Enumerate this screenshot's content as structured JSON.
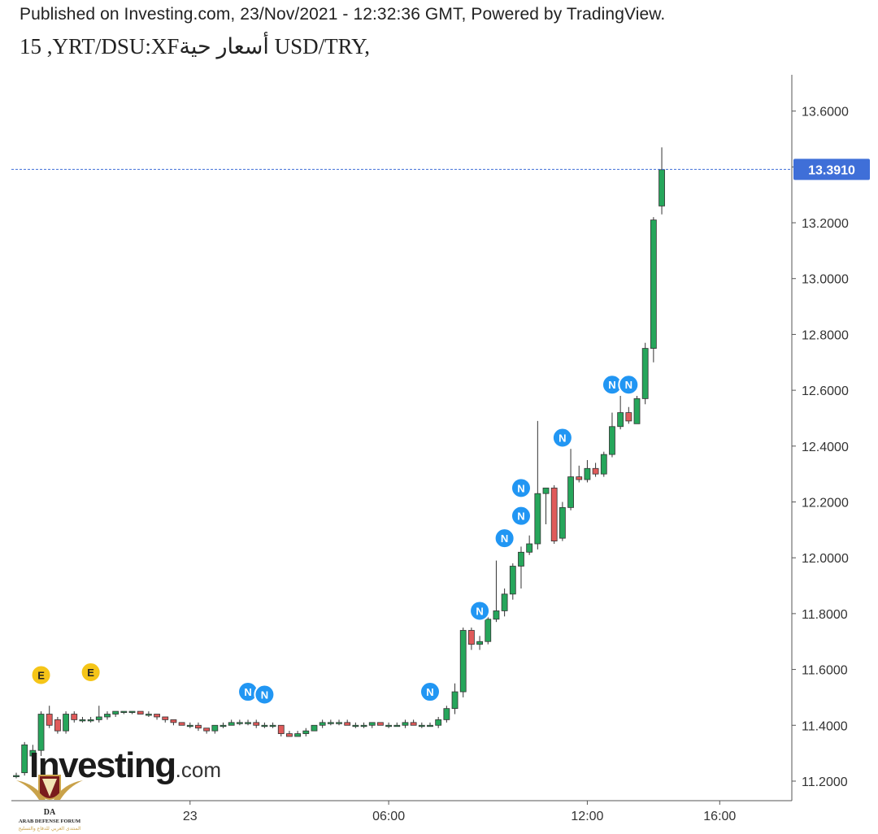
{
  "header": {
    "published_line": "Published on Investing.com, 23/Nov/2021 - 12:32:36 GMT, Powered by TradingView.",
    "title_line": "15 ,YRT/DSU:XFأسعار حية USD/TRY,"
  },
  "watermark": {
    "brand": "Investing",
    "suffix": ".com"
  },
  "badge": {
    "name": "ARAB DEFENSE FORUM",
    "subtitle": "المنتدى العربي للدفاع والتسليح",
    "initials": "DA"
  },
  "colors": {
    "up": "#26a65b",
    "down": "#e05a5a",
    "last_price": "#3f6fd8",
    "news": "#2196f3",
    "earnings": "#f5c518"
  },
  "chart_data": {
    "type": "candlestick",
    "title": "",
    "xlabel": "",
    "ylabel": "",
    "ylim": [
      11.13,
      13.73
    ],
    "y_ticks": [
      "13.6000",
      "13.4000",
      "13.2000",
      "13.0000",
      "12.8000",
      "12.6000",
      "12.4000",
      "12.2000",
      "12.0000",
      "11.8000",
      "11.6000",
      "11.4000",
      "11.2000"
    ],
    "y_tick_values": [
      13.6,
      13.4,
      13.2,
      13.0,
      12.8,
      12.6,
      12.4,
      12.2,
      12.0,
      11.8,
      11.6,
      11.4,
      11.2
    ],
    "x_ticks": [
      {
        "label": "23",
        "bar": 21
      },
      {
        "label": "06:00",
        "bar": 45
      },
      {
        "label": "12:00",
        "bar": 69
      },
      {
        "label": "16:00",
        "bar": 85
      }
    ],
    "last_price": 13.391,
    "last_price_label": "13.3910",
    "candles": [
      [
        11.22,
        11.23,
        11.21,
        11.22
      ],
      [
        11.23,
        11.34,
        11.22,
        11.33
      ],
      [
        11.29,
        11.33,
        11.27,
        11.31
      ],
      [
        11.31,
        11.45,
        11.29,
        11.44
      ],
      [
        11.44,
        11.47,
        11.39,
        11.4
      ],
      [
        11.42,
        11.43,
        11.37,
        11.38
      ],
      [
        11.38,
        11.45,
        11.37,
        11.44
      ],
      [
        11.44,
        11.45,
        11.41,
        11.42
      ],
      [
        11.42,
        11.43,
        11.41,
        11.42
      ],
      [
        11.42,
        11.43,
        11.41,
        11.42
      ],
      [
        11.42,
        11.47,
        11.41,
        11.43
      ],
      [
        11.43,
        11.45,
        11.42,
        11.44
      ],
      [
        11.44,
        11.45,
        11.43,
        11.45
      ],
      [
        11.45,
        11.45,
        11.44,
        11.45
      ],
      [
        11.45,
        11.45,
        11.44,
        11.45
      ],
      [
        11.45,
        11.45,
        11.44,
        11.44
      ],
      [
        11.44,
        11.45,
        11.43,
        11.44
      ],
      [
        11.44,
        11.44,
        11.42,
        11.43
      ],
      [
        11.43,
        11.43,
        11.41,
        11.42
      ],
      [
        11.42,
        11.42,
        11.4,
        11.41
      ],
      [
        11.41,
        11.41,
        11.4,
        11.4
      ],
      [
        11.4,
        11.41,
        11.39,
        11.4
      ],
      [
        11.4,
        11.41,
        11.38,
        11.39
      ],
      [
        11.39,
        11.39,
        11.37,
        11.38
      ],
      [
        11.38,
        11.4,
        11.37,
        11.4
      ],
      [
        11.4,
        11.41,
        11.39,
        11.4
      ],
      [
        11.4,
        11.42,
        11.4,
        11.41
      ],
      [
        11.41,
        11.42,
        11.4,
        11.41
      ],
      [
        11.41,
        11.42,
        11.4,
        11.41
      ],
      [
        11.41,
        11.42,
        11.39,
        11.4
      ],
      [
        11.4,
        11.41,
        11.39,
        11.4
      ],
      [
        11.4,
        11.41,
        11.39,
        11.4
      ],
      [
        11.4,
        11.4,
        11.36,
        11.37
      ],
      [
        11.37,
        11.38,
        11.36,
        11.36
      ],
      [
        11.36,
        11.38,
        11.36,
        11.37
      ],
      [
        11.37,
        11.39,
        11.36,
        11.38
      ],
      [
        11.38,
        11.4,
        11.38,
        11.4
      ],
      [
        11.4,
        11.42,
        11.39,
        11.41
      ],
      [
        11.41,
        11.42,
        11.4,
        11.41
      ],
      [
        11.41,
        11.42,
        11.4,
        11.41
      ],
      [
        11.41,
        11.42,
        11.4,
        11.4
      ],
      [
        11.4,
        11.41,
        11.39,
        11.4
      ],
      [
        11.4,
        11.41,
        11.39,
        11.4
      ],
      [
        11.4,
        11.41,
        11.39,
        11.41
      ],
      [
        11.41,
        11.41,
        11.4,
        11.4
      ],
      [
        11.4,
        11.41,
        11.39,
        11.4
      ],
      [
        11.4,
        11.41,
        11.4,
        11.4
      ],
      [
        11.4,
        11.42,
        11.39,
        11.41
      ],
      [
        11.41,
        11.42,
        11.4,
        11.4
      ],
      [
        11.4,
        11.41,
        11.39,
        11.4
      ],
      [
        11.4,
        11.41,
        11.4,
        11.4
      ],
      [
        11.4,
        11.43,
        11.39,
        11.42
      ],
      [
        11.42,
        11.47,
        11.41,
        11.46
      ],
      [
        11.46,
        11.55,
        11.44,
        11.52
      ],
      [
        11.52,
        11.75,
        11.5,
        11.74
      ],
      [
        11.74,
        11.75,
        11.67,
        11.69
      ],
      [
        11.69,
        11.72,
        11.67,
        11.7
      ],
      [
        11.7,
        11.8,
        11.69,
        11.78
      ],
      [
        11.78,
        11.99,
        11.77,
        11.81
      ],
      [
        11.81,
        11.89,
        11.79,
        11.87
      ],
      [
        11.87,
        11.98,
        11.85,
        11.97
      ],
      [
        11.97,
        12.04,
        11.89,
        12.02
      ],
      [
        12.02,
        12.08,
        12.01,
        12.05
      ],
      [
        12.05,
        12.49,
        12.03,
        12.23
      ],
      [
        12.23,
        12.25,
        12.12,
        12.25
      ],
      [
        12.25,
        12.26,
        12.05,
        12.06
      ],
      [
        12.07,
        12.2,
        12.06,
        12.18
      ],
      [
        12.18,
        12.39,
        12.17,
        12.29
      ],
      [
        12.29,
        12.33,
        12.27,
        12.28
      ],
      [
        12.28,
        12.35,
        12.27,
        12.32
      ],
      [
        12.32,
        12.34,
        12.29,
        12.3
      ],
      [
        12.3,
        12.38,
        12.29,
        12.37
      ],
      [
        12.37,
        12.52,
        12.36,
        12.47
      ],
      [
        12.47,
        12.58,
        12.46,
        12.52
      ],
      [
        12.52,
        12.54,
        12.48,
        12.49
      ],
      [
        12.48,
        12.58,
        12.48,
        12.57
      ],
      [
        12.57,
        12.77,
        12.55,
        12.75
      ],
      [
        12.75,
        13.22,
        12.7,
        13.21
      ],
      [
        13.26,
        13.47,
        13.23,
        13.39
      ]
    ],
    "events": [
      {
        "type": "E",
        "bar": 3,
        "level": 11.58
      },
      {
        "type": "E",
        "bar": 9,
        "level": 11.59
      },
      {
        "type": "N",
        "bar": 28,
        "level": 11.52
      },
      {
        "type": "N",
        "bar": 30,
        "level": 11.51
      },
      {
        "type": "N",
        "bar": 50,
        "level": 11.52
      },
      {
        "type": "N",
        "bar": 56,
        "level": 11.81
      },
      {
        "type": "N",
        "bar": 59,
        "level": 12.07
      },
      {
        "type": "N",
        "bar": 61,
        "level": 12.15
      },
      {
        "type": "N",
        "bar": 61,
        "level": 12.25
      },
      {
        "type": "N",
        "bar": 66,
        "level": 12.43
      },
      {
        "type": "N",
        "bar": 72,
        "level": 12.62
      },
      {
        "type": "N",
        "bar": 74,
        "level": 12.62
      }
    ]
  }
}
